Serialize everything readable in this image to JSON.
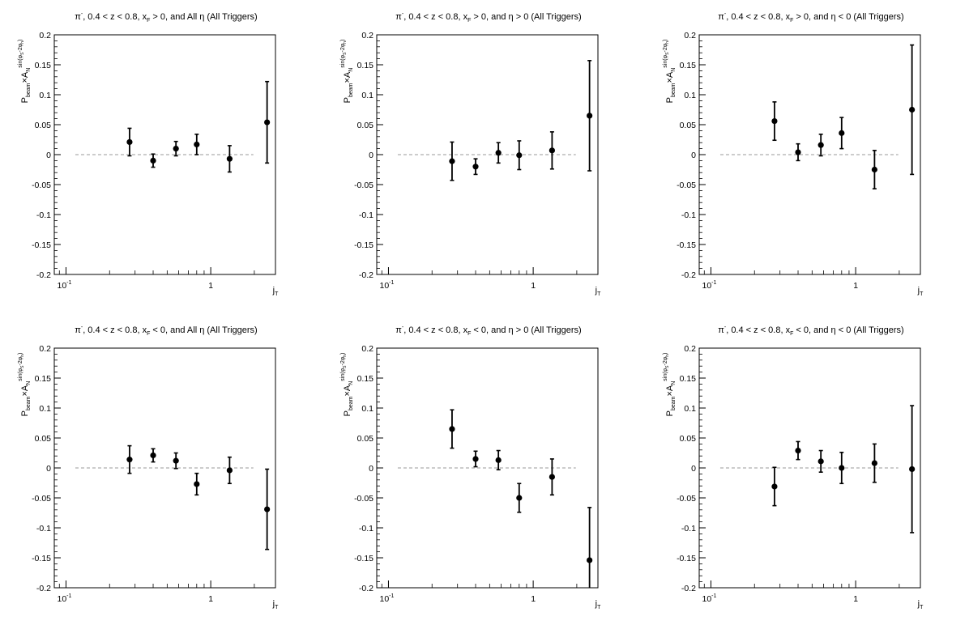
{
  "chart_data": [
    {
      "type": "scatter",
      "title_parts": [
        "π",
        "-",
        ", 0.4 < z < 0.8, x",
        "F",
        " > 0, and All η (All Triggers)"
      ],
      "ylabel_parts": [
        "P",
        "beam",
        "×A",
        "N",
        "sin(φ",
        "S",
        "-2φ",
        "h",
        ")"
      ],
      "xlabel_parts": [
        "j",
        "T"
      ],
      "x_scale": "log",
      "xlim": [
        0.083,
        2.8
      ],
      "ylim": [
        -0.2,
        0.2
      ],
      "x_tick_labels": [
        "10",
        "-1",
        "1"
      ],
      "y_tick_labels": [
        "-0.2",
        "-0.15",
        "-0.1",
        "-0.05",
        "0",
        "0.05",
        "0.1",
        "0.15",
        "0.2"
      ],
      "reference_line": {
        "y": 0,
        "x": [
          0.116,
          1.97
        ],
        "style": "dashed",
        "color": "#bbbbbb"
      },
      "series": [
        {
          "points": [
            {
              "x": 0.275,
              "y": 0.021,
              "err": 0.023
            },
            {
              "x": 0.4,
              "y": -0.01,
              "err": 0.011
            },
            {
              "x": 0.575,
              "y": 0.01,
              "err": 0.012
            },
            {
              "x": 0.8,
              "y": 0.017,
              "err": 0.017
            },
            {
              "x": 1.35,
              "y": -0.007,
              "err": 0.022
            },
            {
              "x": 2.45,
              "y": 0.054,
              "err": 0.068
            }
          ]
        }
      ]
    },
    {
      "type": "scatter",
      "title_parts": [
        "π",
        "-",
        ", 0.4 < z < 0.8, x",
        "F",
        " > 0, and η > 0 (All Triggers)"
      ],
      "ylabel_parts": [
        "P",
        "beam",
        "×A",
        "N",
        "sin(φ",
        "S",
        "-2φ",
        "h",
        ")"
      ],
      "xlabel_parts": [
        "j",
        "T"
      ],
      "x_scale": "log",
      "xlim": [
        0.083,
        2.8
      ],
      "ylim": [
        -0.2,
        0.2
      ],
      "x_tick_labels": [
        "10",
        "-1",
        "1"
      ],
      "y_tick_labels": [
        "-0.2",
        "-0.15",
        "-0.1",
        "-0.05",
        "0",
        "0.05",
        "0.1",
        "0.15",
        "0.2"
      ],
      "reference_line": {
        "y": 0,
        "x": [
          0.116,
          1.97
        ],
        "style": "dashed",
        "color": "#bbbbbb"
      },
      "series": [
        {
          "points": [
            {
              "x": 0.275,
              "y": -0.011,
              "err": 0.032
            },
            {
              "x": 0.4,
              "y": -0.02,
              "err": 0.013
            },
            {
              "x": 0.575,
              "y": 0.003,
              "err": 0.017
            },
            {
              "x": 0.8,
              "y": -0.001,
              "err": 0.024
            },
            {
              "x": 1.35,
              "y": 0.007,
              "err": 0.031
            },
            {
              "x": 2.45,
              "y": 0.065,
              "err": 0.092
            }
          ]
        }
      ]
    },
    {
      "type": "scatter",
      "title_parts": [
        "π",
        "-",
        ", 0.4 < z < 0.8, x",
        "F",
        " > 0, and η < 0 (All Triggers)"
      ],
      "ylabel_parts": [
        "P",
        "beam",
        "×A",
        "N",
        "sin(φ",
        "S",
        "-2φ",
        "h",
        ")"
      ],
      "xlabel_parts": [
        "j",
        "T"
      ],
      "x_scale": "log",
      "xlim": [
        0.083,
        2.8
      ],
      "ylim": [
        -0.2,
        0.2
      ],
      "x_tick_labels": [
        "10",
        "-1",
        "1"
      ],
      "y_tick_labels": [
        "-0.2",
        "-0.15",
        "-0.1",
        "-0.05",
        "0",
        "0.05",
        "0.1",
        "0.15",
        "0.2"
      ],
      "reference_line": {
        "y": 0,
        "x": [
          0.116,
          1.97
        ],
        "style": "dashed",
        "color": "#bbbbbb"
      },
      "series": [
        {
          "points": [
            {
              "x": 0.275,
              "y": 0.056,
              "err": 0.032
            },
            {
              "x": 0.4,
              "y": 0.004,
              "err": 0.014
            },
            {
              "x": 0.575,
              "y": 0.016,
              "err": 0.018
            },
            {
              "x": 0.8,
              "y": 0.036,
              "err": 0.026
            },
            {
              "x": 1.35,
              "y": -0.025,
              "err": 0.032
            },
            {
              "x": 2.45,
              "y": 0.075,
              "err": 0.108
            }
          ]
        }
      ]
    },
    {
      "type": "scatter",
      "title_parts": [
        "π",
        "-",
        ", 0.4 < z < 0.8, x",
        "F",
        " < 0, and All η (All Triggers)"
      ],
      "ylabel_parts": [
        "P",
        "beam",
        "×A",
        "N",
        "sin(φ",
        "S",
        "-2φ",
        "h",
        ")"
      ],
      "xlabel_parts": [
        "j",
        "T"
      ],
      "x_scale": "log",
      "xlim": [
        0.083,
        2.8
      ],
      "ylim": [
        -0.2,
        0.2
      ],
      "x_tick_labels": [
        "10",
        "-1",
        "1"
      ],
      "y_tick_labels": [
        "-0.2",
        "-0.15",
        "-0.1",
        "-0.05",
        "0",
        "0.05",
        "0.1",
        "0.15",
        "0.2"
      ],
      "reference_line": {
        "y": 0,
        "x": [
          0.116,
          1.97
        ],
        "style": "dashed",
        "color": "#bbbbbb"
      },
      "series": [
        {
          "points": [
            {
              "x": 0.275,
              "y": 0.014,
              "err": 0.023
            },
            {
              "x": 0.4,
              "y": 0.021,
              "err": 0.011
            },
            {
              "x": 0.575,
              "y": 0.012,
              "err": 0.013
            },
            {
              "x": 0.8,
              "y": -0.027,
              "err": 0.018
            },
            {
              "x": 1.35,
              "y": -0.004,
              "err": 0.022
            },
            {
              "x": 2.45,
              "y": -0.069,
              "err": 0.067
            }
          ]
        }
      ]
    },
    {
      "type": "scatter",
      "title_parts": [
        "π",
        "-",
        ", 0.4 < z < 0.8, x",
        "F",
        " < 0, and η > 0 (All Triggers)"
      ],
      "ylabel_parts": [
        "P",
        "beam",
        "×A",
        "N",
        "sin(φ",
        "S",
        "-2φ",
        "h",
        ")"
      ],
      "xlabel_parts": [
        "j",
        "T"
      ],
      "x_scale": "log",
      "xlim": [
        0.083,
        2.8
      ],
      "ylim": [
        -0.2,
        0.2
      ],
      "x_tick_labels": [
        "10",
        "-1",
        "1"
      ],
      "y_tick_labels": [
        "-0.2",
        "-0.15",
        "-0.1",
        "-0.05",
        "0",
        "0.05",
        "0.1",
        "0.15",
        "0.2"
      ],
      "reference_line": {
        "y": 0,
        "x": [
          0.116,
          1.97
        ],
        "style": "dashed",
        "color": "#bbbbbb"
      },
      "series": [
        {
          "points": [
            {
              "x": 0.275,
              "y": 0.065,
              "err": 0.032
            },
            {
              "x": 0.4,
              "y": 0.015,
              "err": 0.013
            },
            {
              "x": 0.575,
              "y": 0.013,
              "err": 0.016
            },
            {
              "x": 0.8,
              "y": -0.05,
              "err": 0.024
            },
            {
              "x": 1.35,
              "y": -0.015,
              "err": 0.03
            },
            {
              "x": 2.45,
              "y": -0.154,
              "err": 0.088
            }
          ]
        }
      ]
    },
    {
      "type": "scatter",
      "title_parts": [
        "π",
        "-",
        ", 0.4 < z < 0.8, x",
        "F",
        " < 0, and η < 0 (All Triggers)"
      ],
      "ylabel_parts": [
        "P",
        "beam",
        "×A",
        "N",
        "sin(φ",
        "S",
        "-2φ",
        "h",
        ")"
      ],
      "xlabel_parts": [
        "j",
        "T"
      ],
      "x_scale": "log",
      "xlim": [
        0.083,
        2.8
      ],
      "ylim": [
        -0.2,
        0.2
      ],
      "x_tick_labels": [
        "10",
        "-1",
        "1"
      ],
      "y_tick_labels": [
        "-0.2",
        "-0.15",
        "-0.1",
        "-0.05",
        "0",
        "0.05",
        "0.1",
        "0.15",
        "0.2"
      ],
      "reference_line": {
        "y": 0,
        "x": [
          0.116,
          1.97
        ],
        "style": "dashed",
        "color": "#bbbbbb"
      },
      "series": [
        {
          "points": [
            {
              "x": 0.275,
              "y": -0.031,
              "err": 0.032
            },
            {
              "x": 0.4,
              "y": 0.029,
              "err": 0.015
            },
            {
              "x": 0.575,
              "y": 0.011,
              "err": 0.018
            },
            {
              "x": 0.8,
              "y": 0.0,
              "err": 0.026
            },
            {
              "x": 1.35,
              "y": 0.008,
              "err": 0.032
            },
            {
              "x": 2.45,
              "y": -0.002,
              "err": 0.106
            }
          ]
        }
      ]
    }
  ]
}
